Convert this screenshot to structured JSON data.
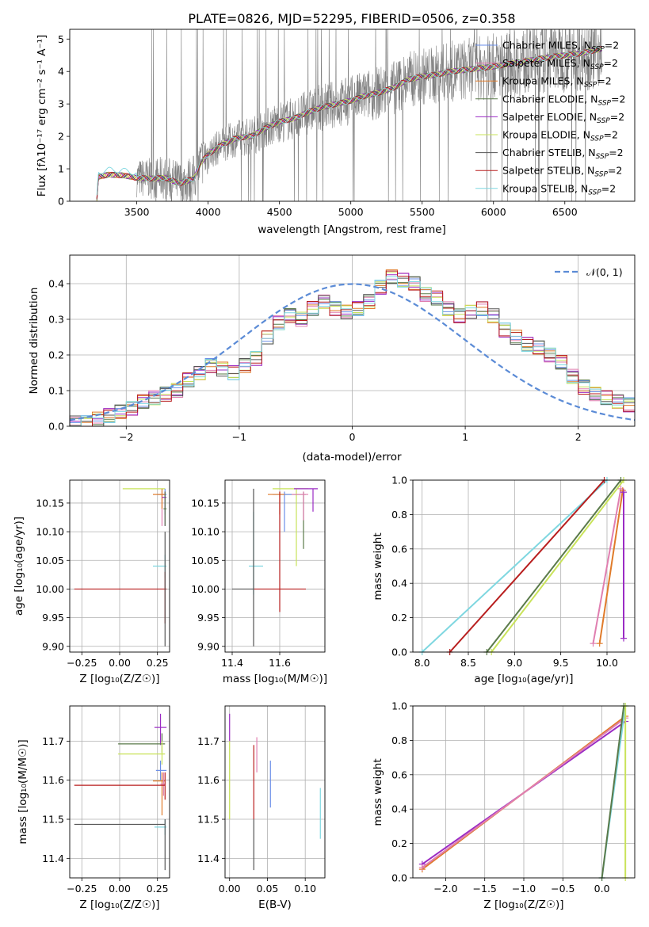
{
  "colors": {
    "chabrier_miles": "#6a8ee8",
    "salpeter_miles": "#e07fb0",
    "kroupa_miles": "#e07b2a",
    "chabrier_elodie": "#5a7a4a",
    "salpeter_elodie": "#9b2cc4",
    "kroupa_elodie": "#c9e35a",
    "chabrier_stelib": "#555555",
    "salpeter_stelib": "#b81e1e",
    "kroupa_stelib": "#7fd7e0",
    "data": "#808080",
    "normal": "#5b8bd6"
  },
  "chart_data": [
    {
      "id": "spectrum",
      "type": "line",
      "title": "PLATE=0826, MJD=52295, FIBERID=0506, z=0.358",
      "xlabel": "wavelength [Angstrom, rest frame]",
      "ylabel": "Flux [f_λ 10^-17 erg cm^-2 s^-1 A^-1]",
      "xlim": [
        3030,
        6990
      ],
      "ylim": [
        0,
        5.3
      ],
      "xticks": [
        3500,
        4000,
        4500,
        5000,
        5500,
        6000,
        6500
      ],
      "yticks": [
        0,
        1,
        2,
        3,
        4,
        5
      ],
      "legend_position": "top-right",
      "series": [
        {
          "name": "Chabrier MILES, N_SSP=2",
          "key": "chabrier_miles"
        },
        {
          "name": "Salpeter MILES, N_SSP=2",
          "key": "salpeter_miles"
        },
        {
          "name": "Kroupa MILES, N_SSP=2",
          "key": "kroupa_miles"
        },
        {
          "name": "Chabrier ELODIE, N_SSP=2",
          "key": "chabrier_elodie"
        },
        {
          "name": "Salpeter ELODIE, N_SSP=2",
          "key": "salpeter_elodie"
        },
        {
          "name": "Kroupa ELODIE, N_SSP=2",
          "key": "kroupa_elodie"
        },
        {
          "name": "Chabrier STELIB, N_SSP=2",
          "key": "chabrier_stelib"
        },
        {
          "name": "Salpeter STELIB, N_SSP=2",
          "key": "salpeter_stelib"
        },
        {
          "name": "Kroupa STELIB, N_SSP=2",
          "key": "kroupa_stelib"
        }
      ],
      "model_continuum": [
        [
          3220,
          0.0
        ],
        [
          3230,
          0.75
        ],
        [
          3300,
          0.82
        ],
        [
          3400,
          0.8
        ],
        [
          3500,
          0.72
        ],
        [
          3600,
          0.7
        ],
        [
          3700,
          0.72
        ],
        [
          3800,
          0.55
        ],
        [
          3900,
          0.7
        ],
        [
          3950,
          1.2
        ],
        [
          4000,
          1.45
        ],
        [
          4100,
          1.75
        ],
        [
          4200,
          1.95
        ],
        [
          4300,
          2.0
        ],
        [
          4400,
          2.25
        ],
        [
          4500,
          2.45
        ],
        [
          4600,
          2.55
        ],
        [
          4700,
          2.75
        ],
        [
          4800,
          2.9
        ],
        [
          4900,
          3.0
        ],
        [
          5000,
          3.1
        ],
        [
          5100,
          3.25
        ],
        [
          5200,
          3.35
        ],
        [
          5300,
          3.5
        ],
        [
          5400,
          3.75
        ],
        [
          5500,
          3.85
        ],
        [
          5600,
          3.9
        ],
        [
          5700,
          4.0
        ],
        [
          5800,
          4.05
        ],
        [
          5900,
          4.1
        ],
        [
          6000,
          4.15
        ],
        [
          6200,
          4.3
        ],
        [
          6400,
          4.45
        ],
        [
          6600,
          4.55
        ],
        [
          6760,
          4.7
        ]
      ]
    },
    {
      "id": "residuals",
      "type": "bar",
      "xlabel": "(data-model)/error",
      "ylabel": "Normed distribution",
      "xlim": [
        -2.5,
        2.5
      ],
      "ylim": [
        0,
        0.48
      ],
      "xticks": [
        -2,
        -1,
        0,
        1,
        2
      ],
      "yticks": [
        0.0,
        0.1,
        0.2,
        0.3,
        0.4
      ],
      "grid": true,
      "legend_position": "top-right",
      "reference_curve": "𝒩(0, 1)",
      "bin_width": 0.1,
      "x": [
        -2.5,
        -2.4,
        -2.3,
        -2.2,
        -2.1,
        -2.0,
        -1.9,
        -1.8,
        -1.7,
        -1.6,
        -1.5,
        -1.4,
        -1.3,
        -1.2,
        -1.1,
        -1.0,
        -0.9,
        -0.8,
        -0.7,
        -0.6,
        -0.5,
        -0.4,
        -0.3,
        -0.2,
        -0.1,
        0.0,
        0.1,
        0.2,
        0.3,
        0.4,
        0.5,
        0.6,
        0.7,
        0.8,
        0.9,
        1.0,
        1.1,
        1.2,
        1.3,
        1.4,
        1.5,
        1.6,
        1.7,
        1.8,
        1.9,
        2.0,
        2.1,
        2.2,
        2.3,
        2.4
      ],
      "values": [
        0.01,
        0.01,
        0.02,
        0.03,
        0.04,
        0.05,
        0.07,
        0.08,
        0.09,
        0.1,
        0.13,
        0.15,
        0.17,
        0.16,
        0.15,
        0.17,
        0.19,
        0.25,
        0.29,
        0.31,
        0.3,
        0.33,
        0.35,
        0.33,
        0.32,
        0.33,
        0.35,
        0.39,
        0.42,
        0.41,
        0.4,
        0.37,
        0.36,
        0.33,
        0.31,
        0.32,
        0.33,
        0.31,
        0.27,
        0.25,
        0.23,
        0.22,
        0.2,
        0.18,
        0.14,
        0.11,
        0.09,
        0.08,
        0.07,
        0.06
      ]
    },
    {
      "id": "age-vs-Z",
      "type": "scatter",
      "xlabel": "Z [log₁₀(Z/Z☉)]",
      "ylabel": "age [log₁₀(age/yr)]",
      "xlim": [
        -0.33,
        0.33
      ],
      "ylim": [
        9.89,
        10.19
      ],
      "xticks": [
        -0.25,
        0.0,
        0.25
      ],
      "yticks": [
        9.9,
        9.95,
        10.0,
        10.05,
        10.1,
        10.15
      ],
      "grid": true
    },
    {
      "id": "age-vs-mass",
      "type": "scatter",
      "xlabel": "mass [log₁₀(M/M☉)]",
      "ylabel": "",
      "xlim": [
        11.37,
        11.79
      ],
      "ylim": [
        9.89,
        10.19
      ],
      "xticks": [
        11.4,
        11.6
      ],
      "yticks": [
        9.9,
        9.95,
        10.0,
        10.05,
        10.1,
        10.15
      ],
      "grid": true
    },
    {
      "id": "massweight-vs-age",
      "type": "line",
      "xlabel": "age [log₁₀(age/yr)]",
      "ylabel": "mass weight",
      "xlim": [
        7.9,
        10.3
      ],
      "ylim": [
        0,
        1.0
      ],
      "xticks": [
        8.0,
        8.5,
        9.0,
        9.5,
        10.0
      ],
      "yticks": [
        0.0,
        0.2,
        0.4,
        0.6,
        0.8,
        1.0
      ],
      "grid": true
    },
    {
      "id": "mass-vs-Z",
      "type": "scatter",
      "xlabel": "Z [log₁₀(Z/Z☉)]",
      "ylabel": "mass [log₁₀(M/M☉)]",
      "xlim": [
        -0.33,
        0.33
      ],
      "ylim": [
        11.35,
        11.79
      ],
      "xticks": [
        -0.25,
        0.0,
        0.25
      ],
      "yticks": [
        11.4,
        11.5,
        11.6,
        11.7
      ],
      "grid": true
    },
    {
      "id": "mass-vs-ebv",
      "type": "scatter",
      "xlabel": "E(B-V)",
      "ylabel": "",
      "xlim": [
        -0.006,
        0.126
      ],
      "ylim": [
        11.35,
        11.79
      ],
      "xticks": [
        0.0,
        0.05,
        0.1
      ],
      "yticks": [
        11.4,
        11.5,
        11.6,
        11.7
      ],
      "grid": true
    },
    {
      "id": "massweight-vs-Z",
      "type": "line",
      "xlabel": "Z [log₁₀(Z/Z☉)]",
      "ylabel": "mass weight",
      "xlim": [
        -2.42,
        0.42
      ],
      "ylim": [
        0,
        1.0
      ],
      "xticks": [
        -2.0,
        -1.5,
        -1.0,
        -0.5,
        0.0
      ],
      "yticks": [
        0.0,
        0.2,
        0.4,
        0.6,
        0.8,
        1.0
      ],
      "grid": true
    }
  ],
  "points": {
    "age_vs_Z": [
      {
        "key": "kroupa_elodie",
        "x": 0.27,
        "y": 10.175,
        "x0": 0.02,
        "x1": 0.3,
        "y0": 10.175,
        "y1": 10.175
      },
      {
        "key": "salpeter_miles",
        "x": 0.28,
        "y": 10.16,
        "x0": 0.28,
        "x1": 0.28,
        "y0": 10.11,
        "y1": 10.172
      },
      {
        "key": "chabrier_miles",
        "x": 0.3,
        "y": 10.165,
        "x0": 0.25,
        "x1": 0.31,
        "y0": 10.13,
        "y1": 10.175
      },
      {
        "key": "kroupa_miles",
        "x": 0.28,
        "y": 10.165,
        "x0": 0.22,
        "x1": 0.3,
        "y0": 10.14,
        "y1": 10.175
      },
      {
        "key": "salpeter_elodie",
        "x": 0.3,
        "y": 10.16,
        "x0": 0.28,
        "x1": 0.31,
        "y0": 10.11,
        "y1": 10.17
      },
      {
        "key": "chabrier_elodie",
        "x": 0.3,
        "y": 10.14,
        "x0": 0.29,
        "x1": 0.31,
        "y0": 10.11,
        "y1": 10.17
      },
      {
        "key": "kroupa_stelib",
        "x": 0.3,
        "y": 10.04,
        "x0": 0.22,
        "x1": 0.31,
        "y0": 10.02,
        "y1": 10.06
      },
      {
        "key": "salpeter_stelib",
        "x": 0.3,
        "y": 10.0,
        "x0": -0.3,
        "x1": 0.31,
        "y0": 9.94,
        "y1": 10.03
      },
      {
        "key": "chabrier_stelib",
        "x": 0.3,
        "y": 10.0,
        "x0": 0.3,
        "x1": 0.3,
        "y0": 9.9,
        "y1": 10.1
      }
    ],
    "age_vs_mass": [
      {
        "key": "kroupa_elodie",
        "x": 11.67,
        "y": 10.175,
        "x0": 11.57,
        "x1": 11.72,
        "y0": 10.04,
        "y1": 10.175
      },
      {
        "key": "salpeter_elodie",
        "x": 11.74,
        "y": 10.175,
        "x0": 11.66,
        "x1": 11.76,
        "y0": 10.135,
        "y1": 10.175
      },
      {
        "key": "chabrier_elodie",
        "x": 11.7,
        "y": 10.165,
        "x0": 11.62,
        "x1": 11.71,
        "y0": 10.07,
        "y1": 10.17
      },
      {
        "key": "salpeter_miles",
        "x": 11.7,
        "y": 10.165,
        "x0": 11.65,
        "x1": 11.72,
        "y0": 10.12,
        "y1": 10.17
      },
      {
        "key": "chabrier_miles",
        "x": 11.62,
        "y": 10.165,
        "x0": 11.57,
        "x1": 11.65,
        "y0": 10.1,
        "y1": 10.17
      },
      {
        "key": "kroupa_miles",
        "x": 11.6,
        "y": 10.165,
        "x0": 11.55,
        "x1": 11.62,
        "y0": 10.13,
        "y1": 10.17
      },
      {
        "key": "kroupa_stelib",
        "x": 11.49,
        "y": 10.04,
        "x0": 11.47,
        "x1": 11.53,
        "y0": 9.99,
        "y1": 10.135
      },
      {
        "key": "salpeter_stelib",
        "x": 11.6,
        "y": 10.0,
        "x0": 11.49,
        "x1": 11.71,
        "y0": 9.96,
        "y1": 10.17
      },
      {
        "key": "chabrier_stelib",
        "x": 11.49,
        "y": 10.0,
        "x0": 11.4,
        "x1": 11.49,
        "y0": 9.9,
        "y1": 10.175
      }
    ],
    "mass_vs_Z": [
      {
        "key": "salpeter_elodie",
        "x": 0.27,
        "y": 11.735,
        "x0": 0.23,
        "x1": 0.31,
        "y0": 11.69,
        "y1": 11.77
      },
      {
        "key": "chabrier_elodie",
        "x": 0.28,
        "y": 11.693,
        "x0": -0.01,
        "x1": 0.3,
        "y0": 11.67,
        "y1": 11.72
      },
      {
        "key": "kroupa_elodie",
        "x": 0.28,
        "y": 11.667,
        "x0": -0.01,
        "x1": 0.3,
        "y0": 11.64,
        "y1": 11.7
      },
      {
        "key": "chabrier_miles",
        "x": 0.27,
        "y": 11.625,
        "x0": 0.24,
        "x1": 0.31,
        "y0": 11.6,
        "y1": 11.65
      },
      {
        "key": "kroupa_miles",
        "x": 0.28,
        "y": 11.598,
        "x0": 0.22,
        "x1": 0.3,
        "y0": 11.51,
        "y1": 11.62
      },
      {
        "key": "salpeter_miles",
        "x": 0.29,
        "y": 11.59,
        "x0": 0.27,
        "x1": 0.3,
        "y0": 11.56,
        "y1": 11.62
      },
      {
        "key": "salpeter_stelib",
        "x": 0.3,
        "y": 11.587,
        "x0": -0.3,
        "x1": 0.3,
        "y0": 11.55,
        "y1": 11.62
      },
      {
        "key": "kroupa_stelib",
        "x": 0.3,
        "y": 11.48,
        "x0": 0.23,
        "x1": 0.31,
        "y0": 11.46,
        "y1": 11.5
      },
      {
        "key": "chabrier_stelib",
        "x": 0.3,
        "y": 11.487,
        "x0": -0.3,
        "x1": 0.3,
        "y0": 11.37,
        "y1": 11.5
      }
    ],
    "mass_vs_ebv": [
      {
        "key": "salpeter_elodie",
        "x": 0.0,
        "y": 11.735,
        "x0": 0.0,
        "x1": 0.0,
        "y0": 11.7,
        "y1": 11.77
      },
      {
        "key": "kroupa_elodie",
        "x": 0.0,
        "y": 11.667,
        "x0": 0.0,
        "x1": 0.0,
        "y0": 11.5,
        "y1": 11.7
      },
      {
        "key": "salpeter_miles",
        "x": 0.036,
        "y": 11.67,
        "x0": 0.036,
        "x1": 0.036,
        "y0": 11.62,
        "y1": 11.71
      },
      {
        "key": "salpeter_stelib",
        "x": 0.032,
        "y": 11.6,
        "x0": 0.032,
        "x1": 0.032,
        "y0": 11.5,
        "y1": 11.69
      },
      {
        "key": "chabrier_stelib",
        "x": 0.032,
        "y": 11.487,
        "x0": 0.032,
        "x1": 0.032,
        "y0": 11.37,
        "y1": 11.5
      },
      {
        "key": "chabrier_miles",
        "x": 0.054,
        "y": 11.6,
        "x0": 0.054,
        "x1": 0.054,
        "y0": 11.53,
        "y1": 11.65
      },
      {
        "key": "kroupa_stelib",
        "x": 0.12,
        "y": 11.52,
        "x0": 0.12,
        "x1": 0.12,
        "y0": 11.45,
        "y1": 11.58
      }
    ],
    "massweight_vs_age": [
      {
        "key": "kroupa_stelib",
        "from": [
          8.0,
          0.0
        ],
        "to": [
          10.0,
          1.0
        ]
      },
      {
        "key": "salpeter_stelib",
        "from": [
          8.3,
          0.0
        ],
        "to": [
          9.97,
          1.0
        ]
      },
      {
        "key": "chabrier_elodie",
        "from": [
          8.7,
          0.0
        ],
        "to": [
          10.15,
          1.0
        ]
      },
      {
        "key": "kroupa_elodie",
        "from": [
          8.75,
          0.0
        ],
        "to": [
          10.18,
          1.0
        ]
      },
      {
        "key": "salpeter_miles",
        "from": [
          9.85,
          0.05
        ],
        "to": [
          10.15,
          0.95
        ]
      },
      {
        "key": "kroupa_miles",
        "from": [
          9.92,
          0.05
        ],
        "to": [
          10.17,
          0.94
        ]
      },
      {
        "key": "salpeter_elodie",
        "from": [
          10.18,
          0.08
        ],
        "to": [
          10.18,
          0.93
        ]
      }
    ],
    "massweight_vs_Z": [
      {
        "key": "salpeter_elodie",
        "from": [
          -2.3,
          0.08
        ],
        "to": [
          0.3,
          0.91
        ]
      },
      {
        "key": "kroupa_miles",
        "from": [
          -2.3,
          0.05
        ],
        "to": [
          0.3,
          0.94
        ]
      },
      {
        "key": "salpeter_miles",
        "from": [
          -2.3,
          0.06
        ],
        "to": [
          0.3,
          0.93
        ]
      },
      {
        "key": "kroupa_stelib",
        "from": [
          0.0,
          0.0
        ],
        "to": [
          0.3,
          1.0
        ]
      },
      {
        "key": "chabrier_elodie",
        "from": [
          0.0,
          0.0
        ],
        "to": [
          0.28,
          1.0
        ]
      },
      {
        "key": "kroupa_elodie",
        "from": [
          0.3,
          0.0
        ],
        "to": [
          0.3,
          1.0
        ]
      }
    ]
  }
}
